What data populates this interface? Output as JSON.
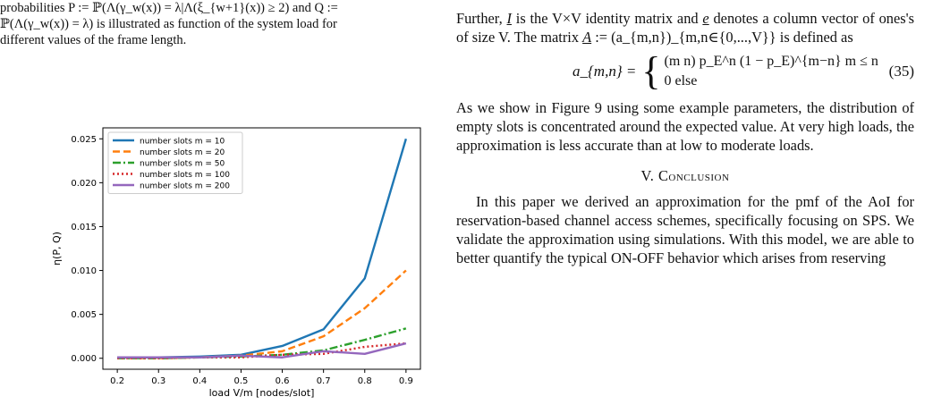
{
  "left": {
    "caption_line1": "probabilities P := ℙ(Λ(γ_w(x)) = λ|Λ(ξ_{w+1}(x)) ≥ 2) and Q :=",
    "caption_line2": "ℙ(Λ(γ_w(x)) = λ) is illustrated as function of the system load for",
    "caption_line3": "different values of the frame length."
  },
  "chart_data": {
    "type": "line",
    "xlabel": "load V/m [nodes/slot]",
    "ylabel": "η(P, Q)",
    "x": [
      0.2,
      0.3,
      0.4,
      0.5,
      0.6,
      0.7,
      0.8,
      0.9
    ],
    "xticks": [
      "0.2",
      "0.3",
      "0.4",
      "0.5",
      "0.6",
      "0.7",
      "0.8",
      "0.9"
    ],
    "yticks": [
      "0.000",
      "0.005",
      "0.010",
      "0.015",
      "0.020",
      "0.025"
    ],
    "xlim": [
      0.165,
      0.935
    ],
    "ylim": [
      -0.00125,
      0.02625
    ],
    "legend_position": "top-left",
    "series": [
      {
        "name": "number slots m = 10",
        "color": "#1f77b4",
        "dash": "solid",
        "values": [
          0.0001,
          0.0001,
          0.0002,
          0.0004,
          0.0014,
          0.0033,
          0.0091,
          0.025
        ]
      },
      {
        "name": "number slots m = 20",
        "color": "#ff7f0e",
        "dash": "dashed",
        "values": [
          0.0,
          0.0,
          0.0001,
          0.0003,
          0.0008,
          0.0025,
          0.0057,
          0.01
        ]
      },
      {
        "name": "number slots m = 50",
        "color": "#2ca02c",
        "dash": "dashdot",
        "values": [
          0.0,
          0.0,
          0.0001,
          0.0002,
          0.0004,
          0.0009,
          0.0021,
          0.0034
        ]
      },
      {
        "name": "number slots m = 100",
        "color": "#d62728",
        "dash": "dotted",
        "values": [
          0.0,
          0.0,
          0.0001,
          0.0001,
          0.0004,
          0.0005,
          0.0013,
          0.0017
        ]
      },
      {
        "name": "number slots m = 200",
        "color": "#9467bd",
        "dash": "solid",
        "values": [
          0.0001,
          0.0001,
          0.0001,
          0.0003,
          0.0001,
          0.0008,
          0.0005,
          0.0017
        ]
      }
    ]
  },
  "right": {
    "p1_line1_a": "Further, ",
    "p1_I": "I",
    "p1_line1_b": " is the V×V identity matrix and ",
    "p1_e": "e",
    "p1_line1_c": " denotes a column",
    "p1_line2": "vector of ones's of size V. The matrix ",
    "p1_A": "A",
    "p1_line2_b": " := (a_{m,n})_{m,n∈{0,...,V}}",
    "p1_line3": "is defined as",
    "eq_lhs": "a_{m,n} =",
    "eq_case1": "(m n) p_E^n (1 − p_E)^{m−n}    m ≤ n",
    "eq_case2": "0    else",
    "eq_number": "(35)",
    "p2": "As we show in Figure 9 using some example parameters, the distribution of empty slots is concentrated around the expected value. At very high loads, the approximation is less accurate than at low to moderate loads.",
    "section_title": "V. Conclusion",
    "p3": "In this paper we derived an approximation for the pmf of the AoI for reservation-based channel access schemes, specifically focusing on SPS. We validate the approximation using simulations. With this model, we are able to better quantify the typical ON-OFF behavior which arises from reserving"
  }
}
